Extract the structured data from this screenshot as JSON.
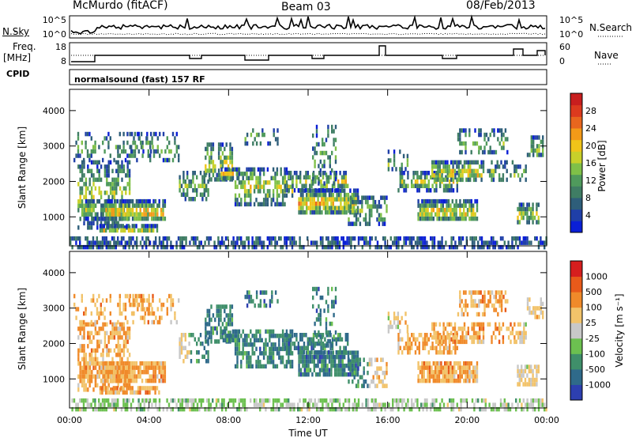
{
  "header": {
    "station": "McMurdo (fitACF)",
    "beam": "Beam 03",
    "date": "08/Feb/2013"
  },
  "top_panels": {
    "nsky_label": "N.Sky",
    "nsearch_label": "N.Search",
    "noise_ticks": [
      "10^5",
      "10^0"
    ],
    "noise_ticks_right": [
      "10^5",
      "10^0"
    ],
    "freq_label": "Freq.",
    "freq_unit": "[MHz]",
    "freq_ticks": [
      "18",
      "8"
    ],
    "nave_label": "Nave",
    "nave_ticks": [
      "60",
      "0"
    ],
    "cpid_label": "CPID",
    "cpid_value": "normalsound (fast) 157 RF"
  },
  "chart_data": [
    {
      "type": "heatmap",
      "title": "",
      "ylabel": "Slant Range [km]",
      "xlabel": "",
      "ylim": [
        180,
        4600
      ],
      "yticks": [
        "4000",
        "3000",
        "2000",
        "1000"
      ],
      "xlim": [
        "00:00",
        "24:00"
      ],
      "colorbar": {
        "label": "Power [dB]",
        "ticks": [
          "28",
          "24",
          "20",
          "16",
          "12",
          "8",
          "4"
        ],
        "colors": [
          "#0a1fd6",
          "#1f3fa8",
          "#2e5e7a",
          "#3f7d64",
          "#4f9a5c",
          "#7fc048",
          "#c8d02a",
          "#f0c419",
          "#f39a18",
          "#e8661e",
          "#dc3a1e",
          "#c81e1e"
        ]
      }
    },
    {
      "type": "heatmap",
      "title": "",
      "ylabel": "Slant Range [km]",
      "xlabel": "Time UT",
      "ylim": [
        180,
        4600
      ],
      "yticks": [
        "4000",
        "3000",
        "2000",
        "1000"
      ],
      "xticks": [
        "00:00",
        "04:00",
        "08:00",
        "12:00",
        "16:00",
        "20:00",
        "00:00"
      ],
      "colorbar": {
        "label": "Velocity [m s⁻¹]",
        "ticks": [
          "1000",
          "500",
          "100",
          "25",
          "-25",
          "-100",
          "-500",
          "-1000"
        ],
        "colors": [
          "#2d3fb0",
          "#2f6a8a",
          "#3f8f6a",
          "#6cc050",
          "#c8c8c8",
          "#f2c36a",
          "#f08a2a",
          "#e85a1a",
          "#d61e1e"
        ]
      }
    }
  ],
  "colors": {
    "axis": "#000000",
    "background": "#ffffff"
  }
}
